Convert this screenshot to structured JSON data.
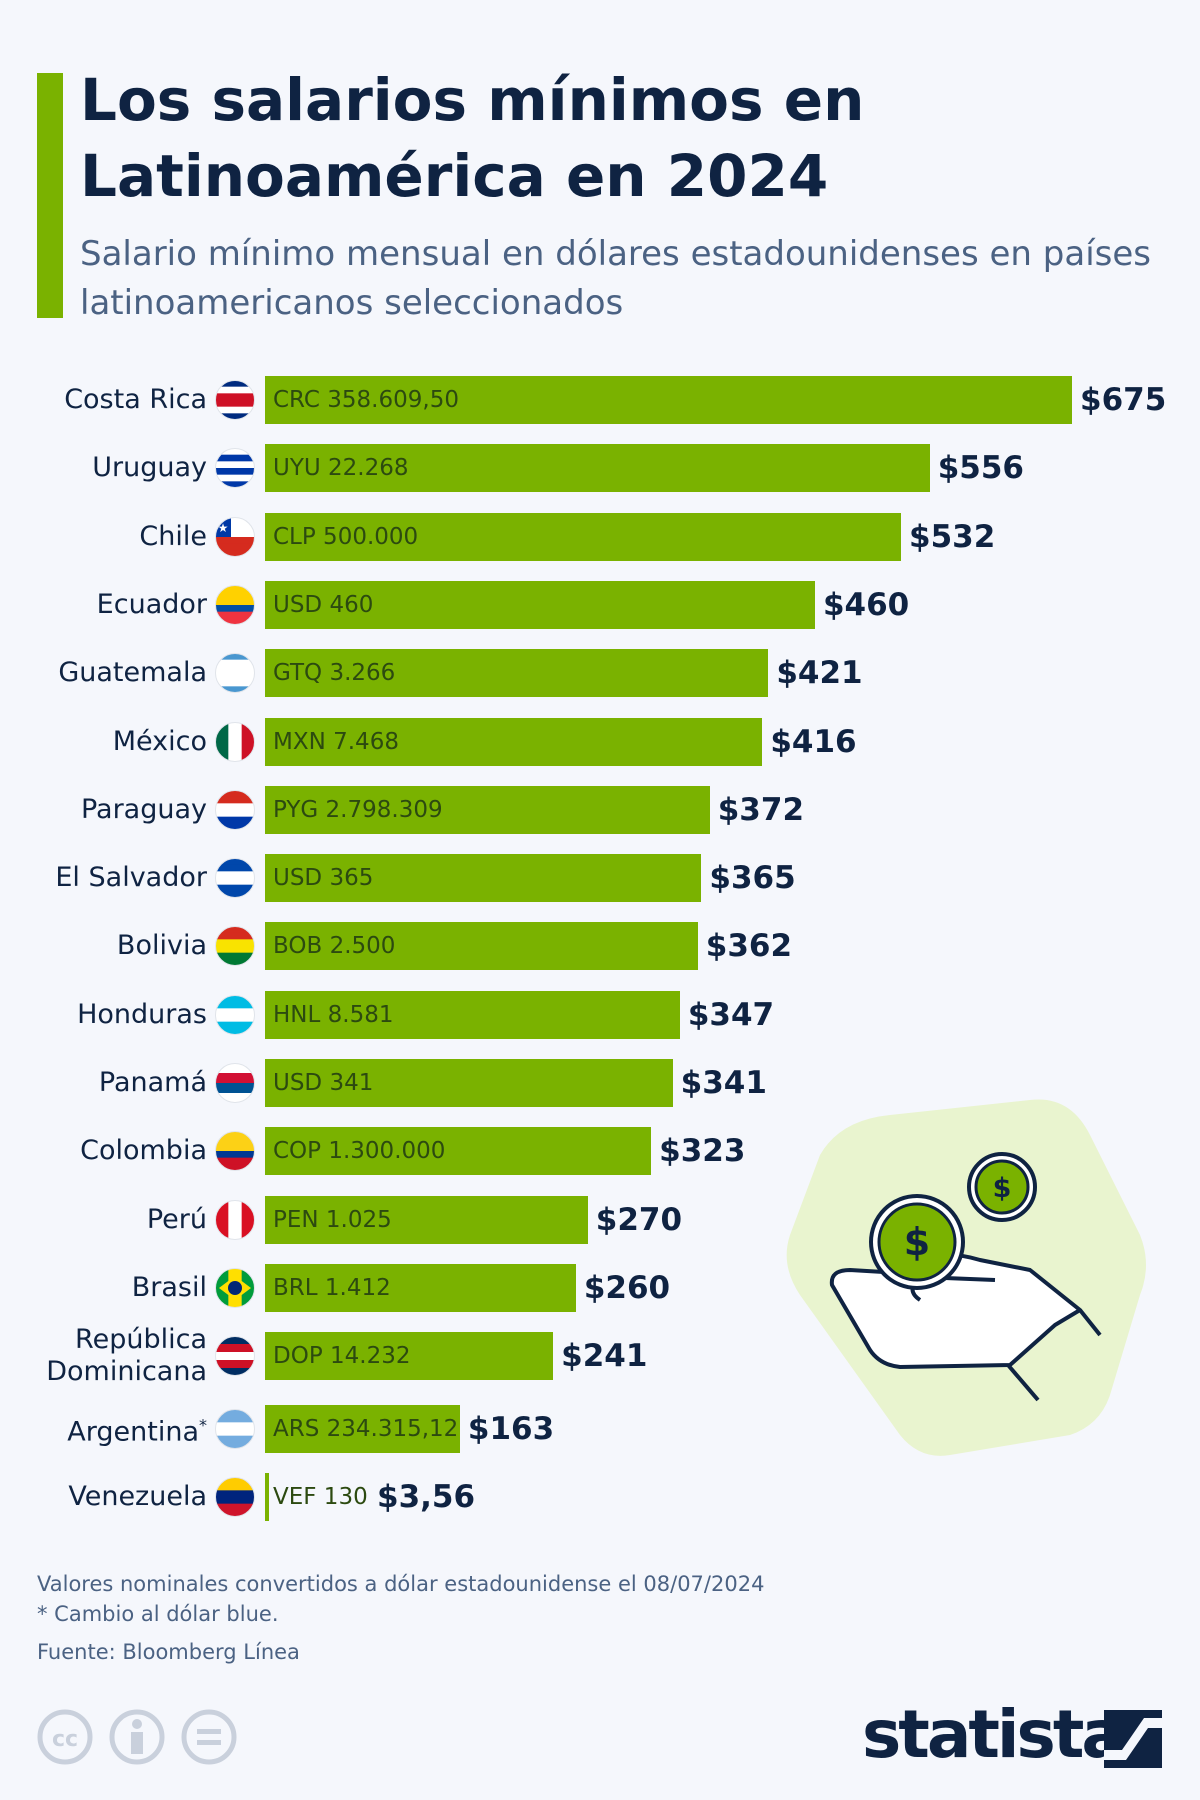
{
  "header": {
    "title": "Los salarios mínimos en Latinoamérica en 2024",
    "subtitle": "Salario mínimo mensual en dólares estadounidenses en países latinoamericanos seleccionados"
  },
  "chart_data": {
    "type": "bar",
    "orientation": "horizontal",
    "title": "Los salarios mínimos en Latinoamérica en 2024",
    "subtitle": "Salario mínimo mensual en dólares estadounidenses en países latinoamericanos seleccionados",
    "categories": [
      "Costa Rica",
      "Uruguay",
      "Chile",
      "Ecuador",
      "Guatemala",
      "México",
      "Paraguay",
      "El Salvador",
      "Bolivia",
      "Honduras",
      "Panamá",
      "Colombia",
      "Perú",
      "Brasil",
      "República Dominicana",
      "Argentina",
      "Venezuela"
    ],
    "footnote_marks": [
      "",
      "",
      "",
      "",
      "",
      "",
      "",
      "",
      "",
      "",
      "",
      "",
      "",
      "",
      "",
      "*",
      ""
    ],
    "values": [
      675,
      556,
      532,
      460,
      421,
      416,
      372,
      365,
      362,
      347,
      341,
      323,
      270,
      260,
      241,
      163,
      3.56
    ],
    "value_labels": [
      "$675",
      "$556",
      "$532",
      "$460",
      "$421",
      "$416",
      "$372",
      "$365",
      "$362",
      "$347",
      "$341",
      "$323",
      "$270",
      "$260",
      "$241",
      "$163",
      "$3,56"
    ],
    "local_labels": [
      "CRC 358.609,50",
      "UYU 22.268",
      "CLP 500.000",
      "USD 460",
      "GTQ 3.266",
      "MXN 7.468",
      "PYG 2.798.309",
      "USD 365",
      "BOB 2.500",
      "HNL 8.581",
      "USD 341",
      "COP 1.300.000",
      "PEN 1.025",
      "BRL 1.412",
      "DOP 14.232",
      "ARS 234.315,12",
      "VEF 130"
    ],
    "bar_color": "#7ab200",
    "grid": false
  },
  "footer": {
    "note": "Valores nominales convertidos a dólar estadounidense el 08/07/2024",
    "note2": "* Cambio al dólar blue.",
    "source": "Fuente: Bloomberg Línea",
    "brand": "statista"
  },
  "colors": {
    "accent": "#7ab200",
    "text": "#0f2342",
    "subtitle": "#4b6283",
    "background": "#f5f7fc"
  }
}
